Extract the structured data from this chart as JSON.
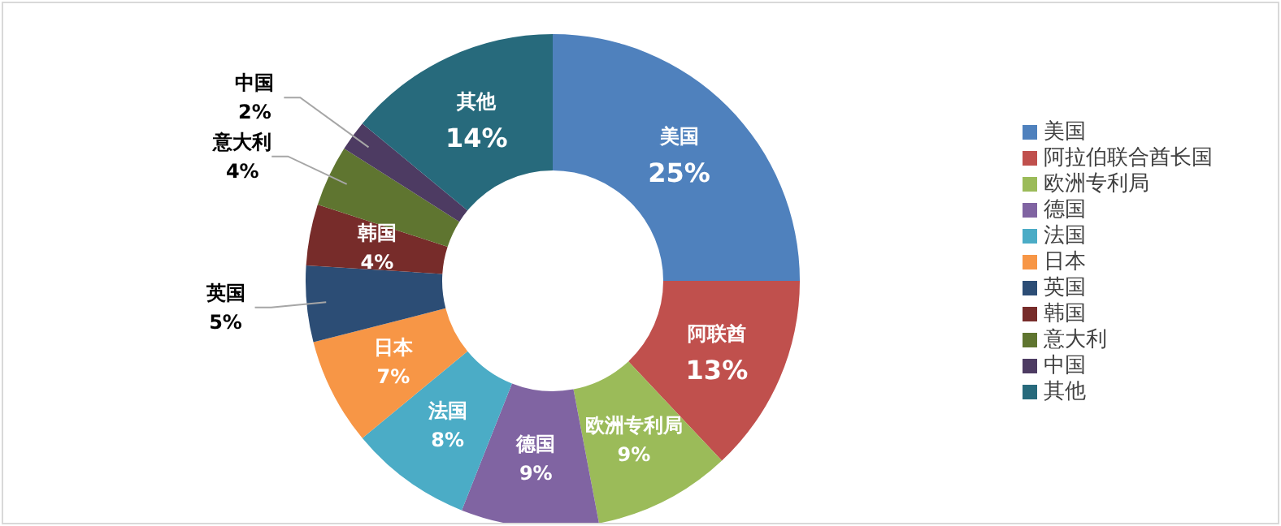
{
  "chart_data": {
    "type": "donut",
    "categories": [
      "美国",
      "阿拉伯联合酋长国",
      "欧洲专利局",
      "德国",
      "法国",
      "日本",
      "英国",
      "韩国",
      "意大利",
      "中国",
      "其他"
    ],
    "values": [
      25,
      13,
      9,
      9,
      8,
      7,
      5,
      4,
      4,
      2,
      14
    ],
    "colors": [
      "#4f81bd",
      "#c0504d",
      "#9bbb59",
      "#8064a2",
      "#4bacc6",
      "#f79646",
      "#2c4d75",
      "#772c2a",
      "#5f7530",
      "#4d3b62",
      "#276a7c"
    ],
    "value_labels": [
      "美国\n25%",
      "阿联酋\n13%",
      "欧洲专利局\n9%",
      "德国\n9%",
      "法国\n8%",
      "日本\n7%",
      "英国\n5%",
      "韩国\n4%",
      "意大利\n4%",
      "中国\n2%",
      "其他\n14%"
    ],
    "legend": "right"
  }
}
